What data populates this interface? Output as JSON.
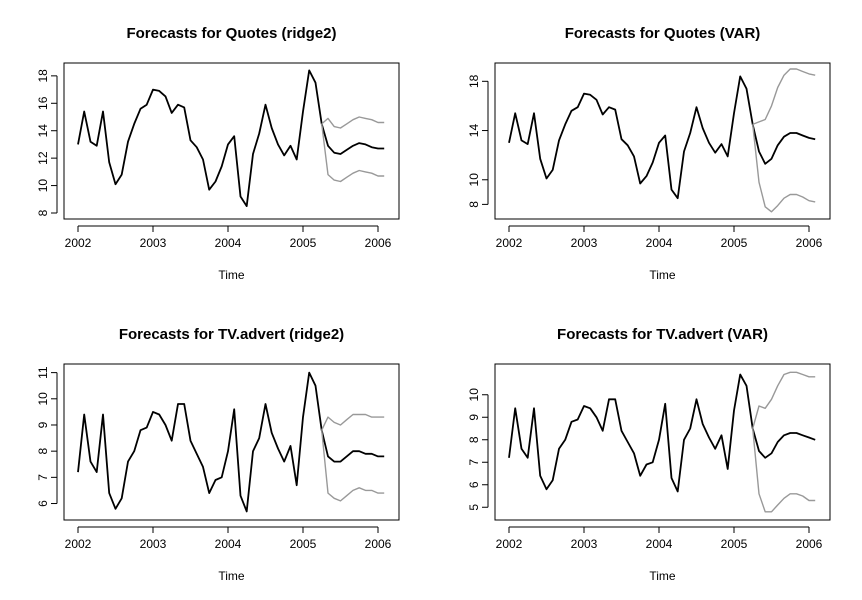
{
  "chart_data": [
    {
      "type": "line",
      "title": "Forecasts for Quotes (ridge2)",
      "xlabel": "Time",
      "ylabel": "",
      "xlim": [
        2002,
        2006.1
      ],
      "ylim": [
        8,
        18.5
      ],
      "xticks": [
        "2002",
        "2003",
        "2004",
        "2005",
        "2006"
      ],
      "yticks": [
        "8",
        "10",
        "12",
        "14",
        "16",
        "18"
      ],
      "grid": false,
      "x_start": 2002,
      "x_step": 0.0833333,
      "series": [
        {
          "color": "#000000",
          "values": [
            13.0,
            15.4,
            13.2,
            12.9,
            15.4,
            11.7,
            10.1,
            10.8,
            13.2,
            14.5,
            15.6,
            15.9,
            17.0,
            16.9,
            16.5,
            15.3,
            15.9,
            15.7,
            13.3,
            12.8,
            11.9,
            9.7,
            10.3,
            11.4,
            13.0,
            13.6,
            9.2,
            8.5,
            12.3,
            13.8,
            15.9,
            14.2,
            13.0,
            12.2,
            12.9,
            11.9,
            15.4,
            18.4,
            17.5,
            14.5,
            12.9,
            12.4,
            12.3,
            12.6,
            12.9,
            13.1,
            13.0,
            12.8,
            12.7,
            12.7
          ]
        },
        {
          "color": "#999999",
          "values": [
            null,
            null,
            null,
            null,
            null,
            null,
            null,
            null,
            null,
            null,
            null,
            null,
            null,
            null,
            null,
            null,
            null,
            null,
            null,
            null,
            null,
            null,
            null,
            null,
            null,
            null,
            null,
            null,
            null,
            null,
            null,
            null,
            null,
            null,
            null,
            null,
            null,
            null,
            null,
            14.5,
            14.9,
            14.3,
            14.2,
            14.5,
            14.8,
            15.0,
            14.9,
            14.8,
            14.6,
            14.6
          ]
        },
        {
          "color": "#999999",
          "values": [
            null,
            null,
            null,
            null,
            null,
            null,
            null,
            null,
            null,
            null,
            null,
            null,
            null,
            null,
            null,
            null,
            null,
            null,
            null,
            null,
            null,
            null,
            null,
            null,
            null,
            null,
            null,
            null,
            null,
            null,
            null,
            null,
            null,
            null,
            null,
            null,
            null,
            null,
            null,
            14.5,
            10.8,
            10.4,
            10.3,
            10.6,
            10.9,
            11.1,
            11.0,
            10.9,
            10.7,
            10.7
          ]
        }
      ]
    },
    {
      "type": "line",
      "title": "Forecasts for Quotes (VAR)",
      "xlabel": "Time",
      "ylabel": "",
      "xlim": [
        2002,
        2006.1
      ],
      "ylim": [
        7.3,
        19.0
      ],
      "xticks": [
        "2002",
        "2003",
        "2004",
        "2005",
        "2006"
      ],
      "yticks": [
        "8",
        "10",
        "14",
        "18"
      ],
      "grid": false,
      "x_start": 2002,
      "x_step": 0.0833333,
      "series": [
        {
          "color": "#000000",
          "values": [
            13.0,
            15.4,
            13.2,
            12.9,
            15.4,
            11.7,
            10.1,
            10.8,
            13.2,
            14.5,
            15.6,
            15.9,
            17.0,
            16.9,
            16.5,
            15.3,
            15.9,
            15.7,
            13.3,
            12.8,
            11.9,
            9.7,
            10.3,
            11.4,
            13.0,
            13.6,
            9.2,
            8.5,
            12.3,
            13.8,
            15.9,
            14.2,
            13.0,
            12.2,
            12.9,
            11.9,
            15.4,
            18.4,
            17.4,
            14.5,
            12.3,
            11.3,
            11.7,
            12.8,
            13.5,
            13.8,
            13.8,
            13.6,
            13.4,
            13.3
          ]
        },
        {
          "color": "#999999",
          "values": [
            null,
            null,
            null,
            null,
            null,
            null,
            null,
            null,
            null,
            null,
            null,
            null,
            null,
            null,
            null,
            null,
            null,
            null,
            null,
            null,
            null,
            null,
            null,
            null,
            null,
            null,
            null,
            null,
            null,
            null,
            null,
            null,
            null,
            null,
            null,
            null,
            null,
            null,
            null,
            14.5,
            14.7,
            14.9,
            16.0,
            17.5,
            18.5,
            19.0,
            19.0,
            18.8,
            18.6,
            18.5
          ]
        },
        {
          "color": "#999999",
          "values": [
            null,
            null,
            null,
            null,
            null,
            null,
            null,
            null,
            null,
            null,
            null,
            null,
            null,
            null,
            null,
            null,
            null,
            null,
            null,
            null,
            null,
            null,
            null,
            null,
            null,
            null,
            null,
            null,
            null,
            null,
            null,
            null,
            null,
            null,
            null,
            null,
            null,
            null,
            null,
            14.5,
            9.8,
            7.8,
            7.4,
            7.9,
            8.5,
            8.8,
            8.8,
            8.6,
            8.3,
            8.2
          ]
        }
      ]
    },
    {
      "type": "line",
      "title": "Forecasts for TV.advert (ridge2)",
      "xlabel": "Time",
      "ylabel": "",
      "xlim": [
        2002,
        2006.1
      ],
      "ylim": [
        5.6,
        11.1
      ],
      "xticks": [
        "2002",
        "2003",
        "2004",
        "2005",
        "2006"
      ],
      "yticks": [
        "6",
        "7",
        "8",
        "9",
        "10",
        "11"
      ],
      "grid": false,
      "x_start": 2002,
      "x_step": 0.0833333,
      "series": [
        {
          "color": "#000000",
          "values": [
            7.2,
            9.4,
            7.6,
            7.2,
            9.4,
            6.4,
            5.8,
            6.2,
            7.6,
            8.0,
            8.8,
            8.9,
            9.5,
            9.4,
            9.0,
            8.4,
            9.8,
            9.8,
            8.4,
            7.9,
            7.4,
            6.4,
            6.9,
            7.0,
            8.0,
            9.6,
            6.3,
            5.7,
            8.0,
            8.5,
            9.8,
            8.7,
            8.1,
            7.6,
            8.2,
            6.7,
            9.3,
            11.0,
            10.5,
            8.8,
            7.8,
            7.6,
            7.6,
            7.8,
            8.0,
            8.0,
            7.9,
            7.9,
            7.8,
            7.8
          ]
        },
        {
          "color": "#999999",
          "values": [
            null,
            null,
            null,
            null,
            null,
            null,
            null,
            null,
            null,
            null,
            null,
            null,
            null,
            null,
            null,
            null,
            null,
            null,
            null,
            null,
            null,
            null,
            null,
            null,
            null,
            null,
            null,
            null,
            null,
            null,
            null,
            null,
            null,
            null,
            null,
            null,
            null,
            null,
            null,
            8.8,
            9.3,
            9.1,
            9.0,
            9.2,
            9.4,
            9.4,
            9.4,
            9.3,
            9.3,
            9.3
          ]
        },
        {
          "color": "#999999",
          "values": [
            null,
            null,
            null,
            null,
            null,
            null,
            null,
            null,
            null,
            null,
            null,
            null,
            null,
            null,
            null,
            null,
            null,
            null,
            null,
            null,
            null,
            null,
            null,
            null,
            null,
            null,
            null,
            null,
            null,
            null,
            null,
            null,
            null,
            null,
            null,
            null,
            null,
            null,
            null,
            8.8,
            6.4,
            6.2,
            6.1,
            6.3,
            6.5,
            6.6,
            6.5,
            6.5,
            6.4,
            6.4
          ]
        }
      ]
    },
    {
      "type": "line",
      "title": "Forecasts for TV.advert (VAR)",
      "xlabel": "Time",
      "ylabel": "",
      "xlim": [
        2002,
        2006.1
      ],
      "ylim": [
        4.7,
        11.1
      ],
      "xticks": [
        "2002",
        "2003",
        "2004",
        "2005",
        "2006"
      ],
      "yticks": [
        "5",
        "6",
        "7",
        "8",
        "9",
        "10"
      ],
      "grid": false,
      "x_start": 2002,
      "x_step": 0.0833333,
      "series": [
        {
          "color": "#000000",
          "values": [
            7.2,
            9.4,
            7.6,
            7.2,
            9.4,
            6.4,
            5.8,
            6.2,
            7.6,
            8.0,
            8.8,
            8.9,
            9.5,
            9.4,
            9.0,
            8.4,
            9.8,
            9.8,
            8.4,
            7.9,
            7.4,
            6.4,
            6.9,
            7.0,
            8.0,
            9.6,
            6.3,
            5.7,
            8.0,
            8.5,
            9.8,
            8.7,
            8.1,
            7.6,
            8.2,
            6.7,
            9.3,
            10.9,
            10.4,
            8.5,
            7.5,
            7.2,
            7.4,
            7.9,
            8.2,
            8.3,
            8.3,
            8.2,
            8.1,
            8.0
          ]
        },
        {
          "color": "#999999",
          "values": [
            null,
            null,
            null,
            null,
            null,
            null,
            null,
            null,
            null,
            null,
            null,
            null,
            null,
            null,
            null,
            null,
            null,
            null,
            null,
            null,
            null,
            null,
            null,
            null,
            null,
            null,
            null,
            null,
            null,
            null,
            null,
            null,
            null,
            null,
            null,
            null,
            null,
            null,
            null,
            8.5,
            9.5,
            9.4,
            9.8,
            10.4,
            10.9,
            11.0,
            11.0,
            10.9,
            10.8,
            10.8
          ]
        },
        {
          "color": "#999999",
          "values": [
            null,
            null,
            null,
            null,
            null,
            null,
            null,
            null,
            null,
            null,
            null,
            null,
            null,
            null,
            null,
            null,
            null,
            null,
            null,
            null,
            null,
            null,
            null,
            null,
            null,
            null,
            null,
            null,
            null,
            null,
            null,
            null,
            null,
            null,
            null,
            null,
            null,
            null,
            null,
            8.5,
            5.6,
            4.8,
            4.8,
            5.1,
            5.4,
            5.6,
            5.6,
            5.5,
            5.3,
            5.3
          ]
        }
      ]
    }
  ]
}
